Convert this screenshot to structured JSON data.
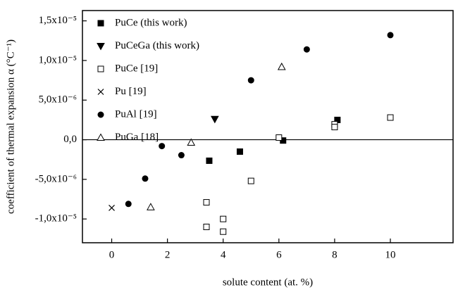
{
  "chart_data": {
    "type": "scatter",
    "x_label": "solute content (at. %)",
    "y_label": "coefficient of thermal expansion α (°C⁻¹)",
    "xlim": [
      -1.05,
      12.25
    ],
    "ylim": [
      -1.3e-05,
      1.63e-05
    ],
    "xticks": [
      0,
      2,
      4,
      6,
      8,
      10
    ],
    "yticks": [
      {
        "value": -1e-05,
        "label": "-1,0x10⁻⁵"
      },
      {
        "value": -5e-06,
        "label": "-5,0x10⁻⁶"
      },
      {
        "value": 0,
        "label": "0,0"
      },
      {
        "value": 5e-06,
        "label": "5,0x10⁻⁶"
      },
      {
        "value": 1e-05,
        "label": "1,0x10⁻⁵"
      },
      {
        "value": 1.5e-05,
        "label": "1,5x10⁻⁵"
      }
    ],
    "zero_line": true,
    "legend": "upper left",
    "series": [
      {
        "name": "PuCe (this work)",
        "color": "#000000",
        "marker": "square-filled",
        "x": [
          3.5,
          4.6,
          6.15,
          8.1
        ],
        "values": [
          -2.65e-06,
          -1.5e-06,
          -1e-07,
          2.5e-06
        ]
      },
      {
        "name": "PuCeGa (this work)",
        "color": "#000000",
        "marker": "triangle-down-filled",
        "x": [
          3.7
        ],
        "values": [
          2.6e-06
        ]
      },
      {
        "name": "PuCe [19]",
        "color": "#000000",
        "marker": "square-open",
        "x": [
          3.4,
          3.4,
          4.0,
          4.0,
          5.0,
          6.0,
          8.0,
          8.0,
          10.0
        ],
        "values": [
          -7.9e-06,
          -1.1e-05,
          -1e-05,
          -1.16e-05,
          -5.2e-06,
          2.7e-07,
          1.95e-06,
          1.6e-06,
          2.8e-06
        ]
      },
      {
        "name": "Pu [19]",
        "color": "#000000",
        "marker": "x",
        "x": [
          0
        ],
        "values": [
          -8.6e-06
        ]
      },
      {
        "name": "PuAl [19]",
        "color": "#000000",
        "marker": "circle-filled",
        "x": [
          0.6,
          1.2,
          1.8,
          2.5,
          5.0,
          7.0,
          10.0
        ],
        "values": [
          -8.1e-06,
          -4.9e-06,
          -8e-07,
          -1.95e-06,
          7.5e-06,
          1.14e-05,
          1.32e-05
        ]
      },
      {
        "name": "PuGa [18]",
        "color": "#000000",
        "marker": "triangle-up-open",
        "x": [
          1.4,
          2.85,
          6.1
        ],
        "values": [
          -8.5e-06,
          -3.5e-07,
          9.2e-06
        ]
      }
    ]
  }
}
